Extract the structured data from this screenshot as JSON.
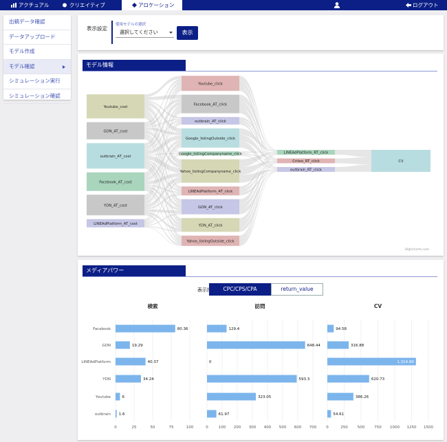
{
  "nav": {
    "tabs": [
      "アクチュアル",
      "クリエイティブ",
      "アロケーション"
    ],
    "active_tab": 2,
    "logout": "ログアウト"
  },
  "sidebar": {
    "items": [
      "出稿データ確認",
      "データアップロード",
      "モデル作成",
      "モデル確認",
      "シミュレーション実行",
      "シミュレーション確認"
    ],
    "active": 3
  },
  "settings": {
    "label": "表示設定",
    "field_label": "使用モデルの選択",
    "select": "選択してください",
    "button": "表示"
  },
  "model_panel": {
    "title": "モデル情報"
  },
  "media_panel": {
    "title": "メディアパワー",
    "metric_label": "表示指標",
    "metric_options": [
      "CPC/CPS/CPA",
      "return_value"
    ],
    "active_metric": 0
  },
  "chart_data": [
    {
      "type": "sankey",
      "credit": "Highcharts.com",
      "columns": [
        [
          {
            "name": "Youtube_cost",
            "color": "#d6d7b5",
            "value": 35
          },
          {
            "name": "GDN_AT_cost",
            "color": "#c8c8c8",
            "value": 25
          },
          {
            "name": "outbrain_AT_cost",
            "color": "#b8dde0",
            "value": 37
          },
          {
            "name": "Facebook_AT_cost",
            "color": "#a9d5bd",
            "value": 27
          },
          {
            "name": "YDN_AT_cost",
            "color": "#c8c8c8",
            "value": 30
          },
          {
            "name": "LINEAdPlatform_AT_cost",
            "color": "#c6c6e6",
            "value": 12
          }
        ],
        [
          {
            "name": "Youtube_click",
            "color": "#e0b4b4",
            "value": 22
          },
          {
            "name": "Facebook_AT_click",
            "color": "#c8c8c8",
            "value": 27
          },
          {
            "name": "outbrain_AT_click",
            "color": "#c6c6e6",
            "value": 11
          },
          {
            "name": "Google_listingOutside_click",
            "color": "#b8dde0",
            "value": 28
          },
          {
            "name": "Google_listingCompanyname_click",
            "color": "#a9d5bd",
            "value": 6
          },
          {
            "name": "Yahoo_listingCompanyname_click",
            "color": "#d6d7b5",
            "value": 34
          },
          {
            "name": "LINEAdPlatform_AT_click",
            "color": "#e0b4b4",
            "value": 13
          },
          {
            "name": "GDN_AT_click",
            "color": "#c6c6e6",
            "value": 22
          },
          {
            "name": "YDN_AT_click",
            "color": "#d6d7b5",
            "value": 20
          },
          {
            "name": "Yahoo_listingOutside_click",
            "color": "#e0b4b4",
            "value": 15
          }
        ],
        [
          {
            "name": "LINEAdPlatform_RT_click",
            "color": "#a9d5bd",
            "value": 7
          },
          {
            "name": "Criteo_RT_click",
            "color": "#e0b4b4",
            "value": 7
          },
          {
            "name": "outbrain_RT_click",
            "color": "#c6c6e6",
            "value": 7
          }
        ],
        [
          {
            "name": "CV",
            "color": "#b8dde0",
            "value": 32
          }
        ]
      ]
    },
    {
      "type": "bar",
      "orientation": "horizontal",
      "title": "検索",
      "categories": [
        "Facebook",
        "GDN",
        "LINEAdPlatform",
        "YDN",
        "Youtube",
        "outbrain"
      ],
      "values": [
        80.36,
        19.29,
        40.37,
        34.24,
        6,
        1.6
      ],
      "color": "#7cb5ec",
      "xlim": [
        0,
        100
      ],
      "xticks": [
        0,
        25,
        50,
        75,
        100
      ],
      "grid": true
    },
    {
      "type": "bar",
      "orientation": "horizontal",
      "title": "訪問",
      "values": [
        129.4,
        648.44,
        0,
        593.3,
        323.05,
        61.97
      ],
      "color": "#7cb5ec",
      "xlim": [
        0,
        700
      ],
      "xticks": [
        0,
        100,
        200,
        300,
        400,
        500,
        600,
        700
      ],
      "grid": true
    },
    {
      "type": "bar",
      "orientation": "horizontal",
      "title": "CV",
      "values": [
        94.58,
        316.88,
        1314.89,
        620.73,
        386.26,
        54.61
      ],
      "value_labels": [
        "94.58",
        "316.88",
        "1,314.89",
        "620.73",
        "386.26",
        "54.61"
      ],
      "color": "#7cb5ec",
      "xlim": [
        0,
        1500
      ],
      "xticks": [
        0,
        250,
        500,
        750,
        1000,
        1250,
        1500
      ],
      "grid": true
    }
  ]
}
